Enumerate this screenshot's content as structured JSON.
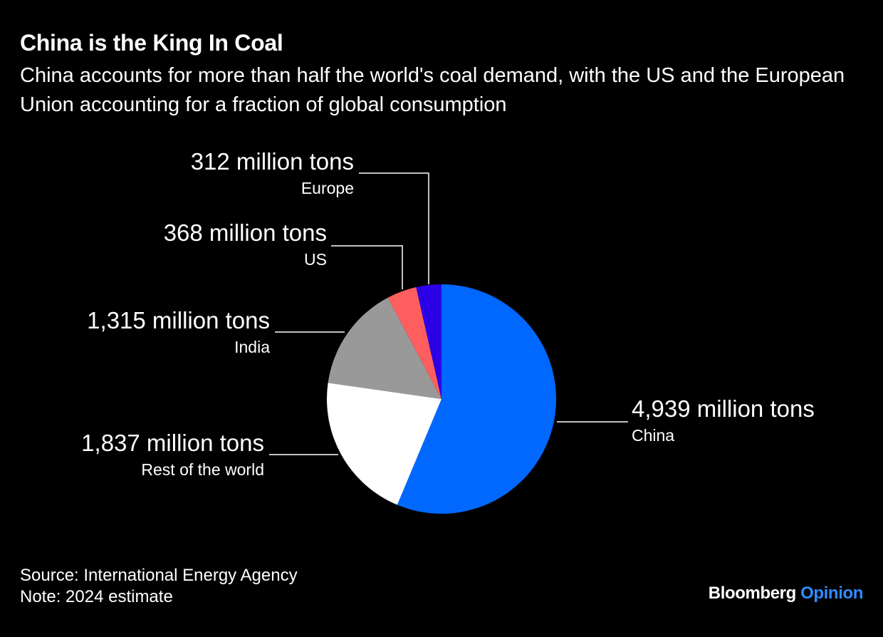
{
  "header": {
    "title": "China is the King In Coal",
    "subtitle": "China accounts for more than half the world's coal demand, with the US and the European Union accounting for a fraction of global consumption"
  },
  "chart_data": {
    "type": "pie",
    "title": "China is the King In Coal",
    "subtitle": "China accounts for more than half the world's coal demand, with the US and the European Union accounting for a fraction of global consumption",
    "unit": "million tons",
    "start": "12 o'clock",
    "direction": "clockwise",
    "slices": [
      {
        "name": "China",
        "value": 4939,
        "value_label": "4,939 million tons",
        "color": "#0068ff"
      },
      {
        "name": "Rest of the world",
        "value": 1837,
        "value_label": "1,837 million tons",
        "color": "#ffffff"
      },
      {
        "name": "India",
        "value": 1315,
        "value_label": "1,315 million tons",
        "color": "#999999"
      },
      {
        "name": "US",
        "value": 368,
        "value_label": "368 million tons",
        "color": "#ff5e5e"
      },
      {
        "name": "Europe",
        "value": 312,
        "value_label": "312 million tons",
        "color": "#2b00e6"
      }
    ]
  },
  "footer": {
    "source": "Source: International Energy Agency",
    "note": "Note: 2024 estimate",
    "brand_primary": "Bloomberg",
    "brand_secondary": "Opinion"
  }
}
